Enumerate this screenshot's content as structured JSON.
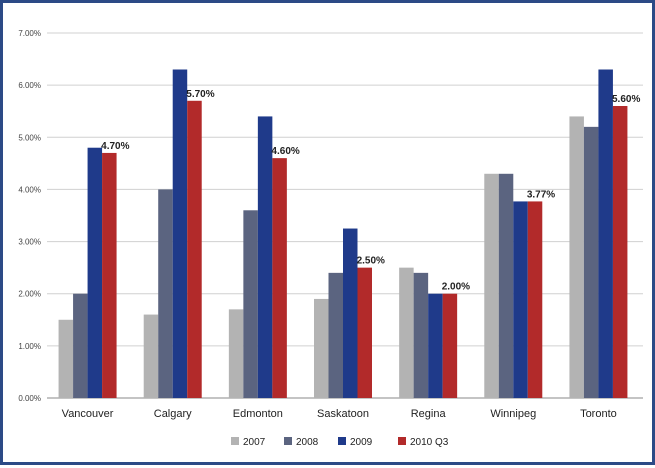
{
  "chart_data": {
    "type": "bar",
    "categories": [
      "Vancouver",
      "Calgary",
      "Edmonton",
      "Saskatoon",
      "Regina",
      "Winnipeg",
      "Toronto"
    ],
    "series": [
      {
        "name": "2007",
        "color": "#b3b3b3",
        "values": [
          1.5,
          1.6,
          1.7,
          1.9,
          2.5,
          4.3,
          5.4
        ]
      },
      {
        "name": "2008",
        "color": "#5b6480",
        "values": [
          2.0,
          4.0,
          3.6,
          2.4,
          2.4,
          4.3,
          5.2
        ]
      },
      {
        "name": "2009",
        "color": "#1f3a8a",
        "values": [
          4.8,
          6.3,
          5.4,
          3.25,
          2.0,
          3.77,
          6.3
        ]
      },
      {
        "name": "2010 Q3",
        "color": "#b22a2a",
        "values": [
          4.7,
          5.7,
          4.6,
          2.5,
          2.0,
          3.77,
          5.6
        ]
      }
    ],
    "data_labels": [
      "4.70%",
      "5.70%",
      "4.60%",
      "2.50%",
      "2.00%",
      "3.77%",
      "5.60%"
    ],
    "y_ticks": [
      "0.00%",
      "1.00%",
      "2.00%",
      "3.00%",
      "4.00%",
      "5.00%",
      "6.00%",
      "7.00%"
    ],
    "ylim": [
      0,
      7
    ],
    "grid": true,
    "legend_position": "bottom",
    "title": "",
    "xlabel": "",
    "ylabel": ""
  }
}
